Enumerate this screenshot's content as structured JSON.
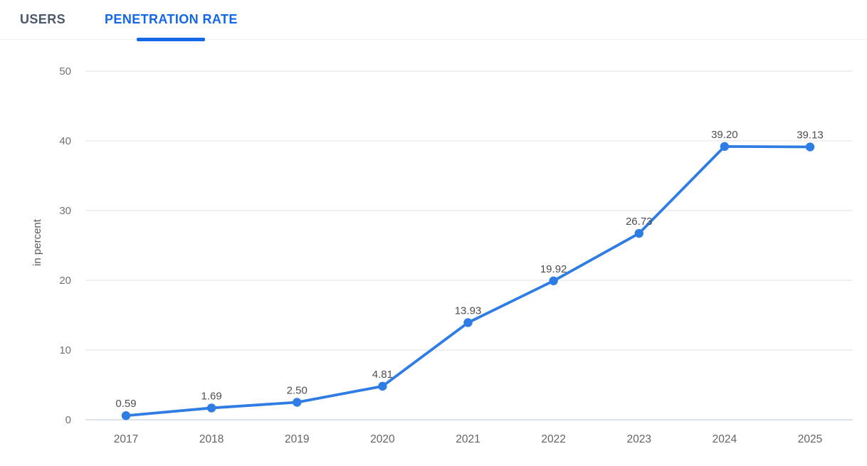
{
  "tabs": [
    {
      "label": "USERS",
      "active": false
    },
    {
      "label": "PENETRATION RATE",
      "active": true
    }
  ],
  "chart_data": {
    "type": "line",
    "title": "",
    "x": [
      "2017",
      "2018",
      "2019",
      "2020",
      "2021",
      "2022",
      "2023",
      "2024",
      "2025"
    ],
    "series": [
      {
        "name": "PENETRATION RATE",
        "values": [
          0.59,
          1.69,
          2.5,
          4.81,
          13.93,
          19.92,
          26.73,
          39.2,
          39.13
        ],
        "point_labels": [
          "0.59",
          "1.69",
          "2.50",
          "4.81",
          "13.93",
          "19.92",
          "26.73",
          "39.20",
          "39.13"
        ]
      }
    ],
    "xlabel": "",
    "ylabel": "in percent",
    "ylim": [
      0,
      50
    ],
    "yticks": [
      0,
      10,
      20,
      30,
      40,
      50
    ],
    "grid": true,
    "legend": false
  },
  "colors": {
    "active_tab": "#1467e8",
    "inactive_tab": "#4b586c",
    "line": "#2e7ce4",
    "point": "#2e7ce4",
    "gridline": "#e8e8e8",
    "zero_axis": "#cfd8e3",
    "tick_text": "#6f7276",
    "year_text": "#606468",
    "point_label_text": "#4b4e53",
    "ylabel_text": "#5a5e63",
    "tab_divider": "#f0f2f4"
  }
}
